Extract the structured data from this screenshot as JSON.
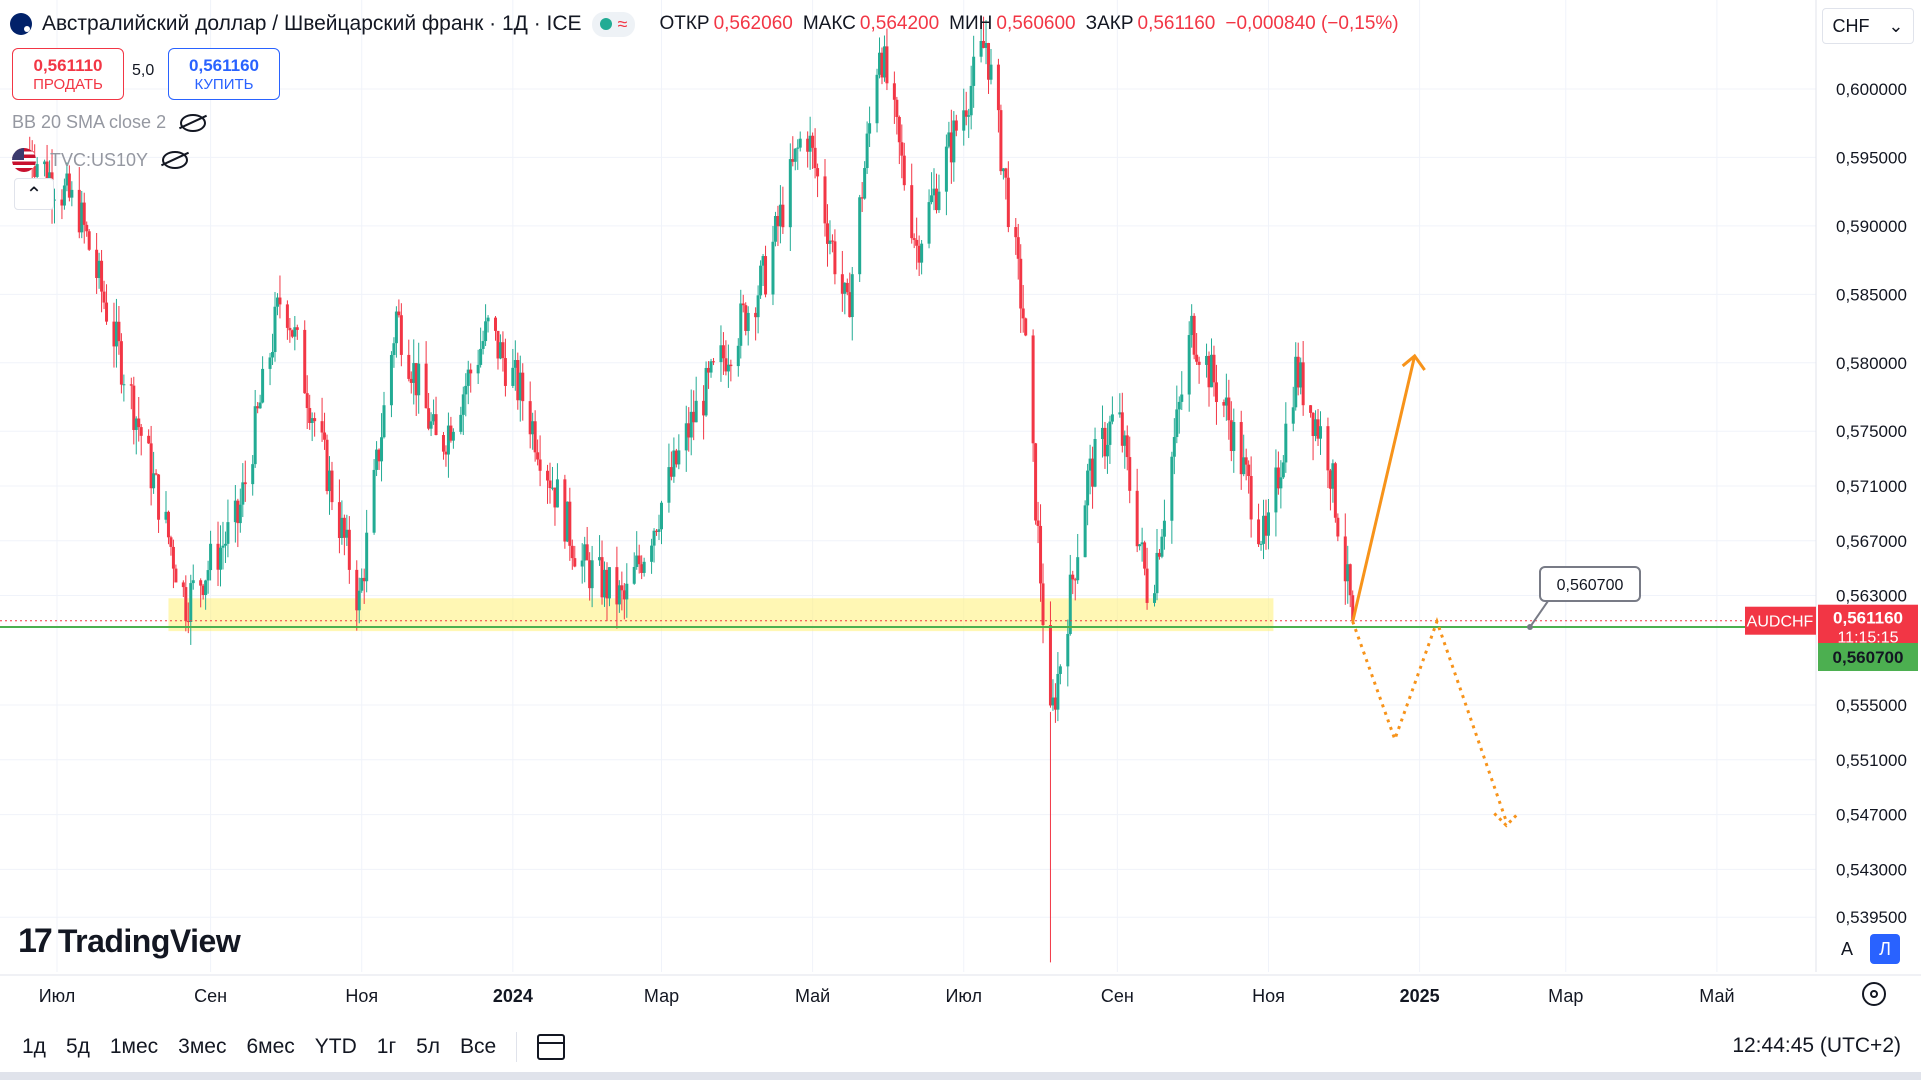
{
  "header": {
    "title": "Австралийский доллар / Швейцарский франк · 1Д · ICE",
    "ohlc": [
      {
        "label": "ОТКР",
        "value": "0,562060"
      },
      {
        "label": "МАКС",
        "value": "0,564200"
      },
      {
        "label": "МИН",
        "value": "0,560600"
      },
      {
        "label": "ЗАКР",
        "value": "0,561160"
      }
    ],
    "change": "−0,000840 (−0,15%)",
    "approx_symbol": "≈"
  },
  "trade": {
    "sell_price": "0,561110",
    "sell_label": "ПРОДАТЬ",
    "spread": "5,0",
    "buy_price": "0,561160",
    "buy_label": "КУПИТЬ"
  },
  "indicators": [
    {
      "label": "BB 20 SMA close 2"
    },
    {
      "label": "TVC:US10Y"
    }
  ],
  "currency": {
    "label": "CHF",
    "caret": "⌄"
  },
  "logo": {
    "mark": "17",
    "text": "TradingView"
  },
  "scale_buttons": {
    "a": "A",
    "l": "Л"
  },
  "toolbar": {
    "timeframes": [
      "1д",
      "5д",
      "1мес",
      "3мес",
      "6мес",
      "YTD",
      "1г",
      "5л",
      "Все"
    ],
    "clock": "12:44:45 (UTC+2)"
  },
  "chart_data": {
    "type": "candlestick",
    "symbol_tag": "AUDCHF",
    "last_price": "0,561160",
    "countdown": "11:15:15",
    "alert_price": "0,560700",
    "callout_price": "0,560700",
    "ylim": [
      0.5355,
      0.6065
    ],
    "y_ticks": [
      {
        "label": "0,600000",
        "value": 0.6
      },
      {
        "label": "0,595000",
        "value": 0.595
      },
      {
        "label": "0,590000",
        "value": 0.59
      },
      {
        "label": "0,585000",
        "value": 0.585
      },
      {
        "label": "0,580000",
        "value": 0.58
      },
      {
        "label": "0,575000",
        "value": 0.575
      },
      {
        "label": "0,571000",
        "value": 0.571
      },
      {
        "label": "0,567000",
        "value": 0.567
      },
      {
        "label": "0,563000",
        "value": 0.563
      },
      {
        "label": "0,555000",
        "value": 0.555
      },
      {
        "label": "0,551000",
        "value": 0.551
      },
      {
        "label": "0,547000",
        "value": 0.547
      },
      {
        "label": "0,543000",
        "value": 0.543
      },
      {
        "label": "0,539500",
        "value": 0.5395
      }
    ],
    "x_ticks": [
      "Июл",
      "Сен",
      "Ноя",
      "2024",
      "Мар",
      "Май",
      "Июл",
      "Сен",
      "Ноя",
      "2025",
      "Мар",
      "Май"
    ],
    "path": [
      [
        "2023-06-20",
        0.5955
      ],
      [
        "2023-07-10",
        0.591
      ],
      [
        "2023-07-31",
        0.5775
      ],
      [
        "2023-08-22",
        0.5625
      ],
      [
        "2023-09-12",
        0.5685
      ],
      [
        "2023-09-30",
        0.5855
      ],
      [
        "2023-10-12",
        0.5765
      ],
      [
        "2023-10-31",
        0.5625
      ],
      [
        "2023-11-15",
        0.5835
      ],
      [
        "2023-12-02",
        0.5735
      ],
      [
        "2023-12-22",
        0.5825
      ],
      [
        "2024-01-05",
        0.5775
      ],
      [
        "2024-01-28",
        0.5655
      ],
      [
        "2024-02-15",
        0.5625
      ],
      [
        "2024-03-15",
        0.5765
      ],
      [
        "2024-04-12",
        0.5865
      ],
      [
        "2024-04-28",
        0.5975
      ],
      [
        "2024-05-15",
        0.5835
      ],
      [
        "2024-05-28",
        0.6035
      ],
      [
        "2024-06-12",
        0.5885
      ],
      [
        "2024-06-25",
        0.5955
      ],
      [
        "2024-07-10",
        0.6035
      ],
      [
        "2024-07-25",
        0.5835
      ],
      [
        "2024-08-05",
        0.5535
      ],
      [
        "2024-08-20",
        0.5715
      ],
      [
        "2024-09-01",
        0.5765
      ],
      [
        "2024-09-14",
        0.5625
      ],
      [
        "2024-10-01",
        0.5825
      ],
      [
        "2024-10-15",
        0.5765
      ],
      [
        "2024-10-31",
        0.5665
      ],
      [
        "2024-11-12",
        0.5795
      ],
      [
        "2024-11-25",
        0.5735
      ],
      [
        "2024-12-05",
        0.5611
      ]
    ],
    "support_zone": {
      "from": "2023-08-15",
      "to": "2024-11-03",
      "low": 0.5604,
      "high": 0.5628
    },
    "projections": {
      "bullish": [
        [
          "2024-12-05",
          0.5611
        ],
        [
          "2024-12-30",
          0.5805
        ]
      ],
      "bearish": [
        [
          "2024-12-05",
          0.5611
        ],
        [
          "2024-12-22",
          0.5525
        ],
        [
          "2025-01-08",
          0.5611
        ],
        [
          "2025-02-05",
          0.5465
        ]
      ]
    }
  }
}
